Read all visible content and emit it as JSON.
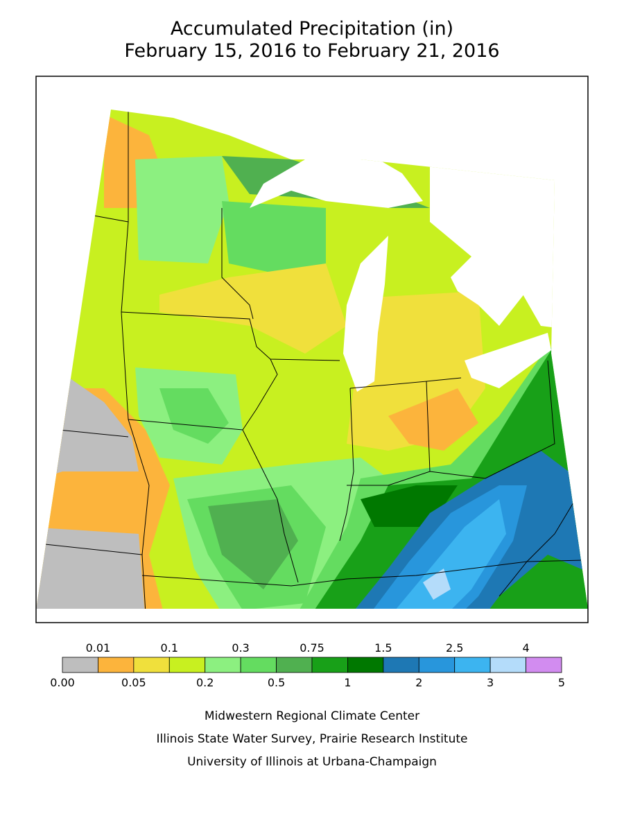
{
  "title": {
    "line1": "Accumulated Precipitation (in)",
    "line2": "February 15, 2016 to February 21, 2016"
  },
  "legend": {
    "colors": [
      "#bebebe",
      "#fcb43c",
      "#f0e03c",
      "#c8f020",
      "#8cf080",
      "#64dc60",
      "#50b050",
      "#18a018",
      "#007800",
      "#1e78b4",
      "#2896dc",
      "#3cb4f0",
      "#b4dcfa",
      "#d28cf0"
    ],
    "top_labels": [
      "0.01",
      "0.1",
      "0.3",
      "0.75",
      "1.5",
      "2.5",
      "4"
    ],
    "bottom_labels": [
      "0.00",
      "0.05",
      "0.2",
      "0.5",
      "1",
      "2",
      "3",
      "5"
    ]
  },
  "credits": [
    "Midwestern Regional Climate Center",
    "Illinois State Water Survey, Prairie Research Institute",
    "University of Illinois at Urbana-Champaign"
  ]
}
